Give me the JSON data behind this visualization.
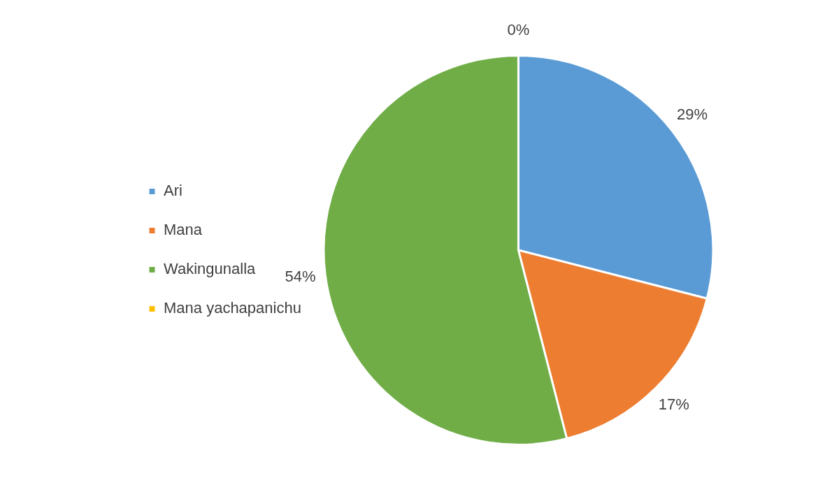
{
  "chart_data": {
    "type": "pie",
    "categories": [
      "Ari",
      "Mana",
      "Wakingunalla",
      "Mana yachapanichu"
    ],
    "values": [
      29,
      17,
      54,
      0
    ],
    "colors": [
      "#5b9bd5",
      "#ed7d31",
      "#70ad47",
      "#ffc000"
    ],
    "value_labels": [
      "29%",
      "17%",
      "54%",
      "0%"
    ],
    "legend": "left"
  }
}
